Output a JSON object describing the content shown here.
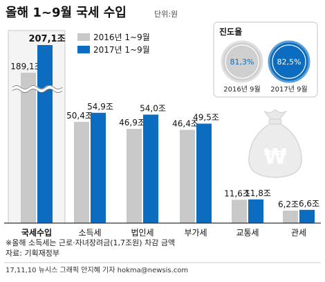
{
  "chart_data": {
    "type": "bar",
    "title": "올해 1~9월 국세 수입",
    "unit": "단위:원",
    "categories": [
      "국세수입",
      "소득세",
      "법인세",
      "부가세",
      "교통세",
      "관세"
    ],
    "series": [
      {
        "name": "2016년 1~9월",
        "values": [
          189.1,
          50.4,
          46.9,
          46.4,
          11.6,
          6.2
        ],
        "labels": [
          "189,1조",
          "50,4조",
          "46,9조",
          "46,4조",
          "11,6조",
          "6,2조"
        ],
        "color": "#c8c8c8"
      },
      {
        "name": "2017년 1~9월",
        "values": [
          207.1,
          54.9,
          54.0,
          49.5,
          11.8,
          6.6
        ],
        "labels": [
          "207,1조",
          "54,9조",
          "54,0조",
          "49,5조",
          "11,8조",
          "6,6조"
        ],
        "color": "#0b6cc0"
      }
    ],
    "axis_break": true,
    "legend_position": "top-center",
    "highlight_category": "국세수입"
  },
  "progress": {
    "title": "진도율",
    "items": [
      {
        "label": "2016년 9월",
        "value_text": "81,3%",
        "fraction": 0.813,
        "color": "#c8c8c8"
      },
      {
        "label": "2017년 9월",
        "value_text": "82,5%",
        "fraction": 0.825,
        "color": "#0b6cc0"
      }
    ]
  },
  "icon": {
    "name": "won-money-bag-icon",
    "symbol": "₩"
  },
  "notes": {
    "note1": "※올해 소득세는 근로·자녀장려금(1,7조원) 차감 금액",
    "source": "자료: 기획재정부",
    "credit": "17,11,10 뉴시스 그래픽 안지혜 기자 hokma@newsis.com"
  }
}
